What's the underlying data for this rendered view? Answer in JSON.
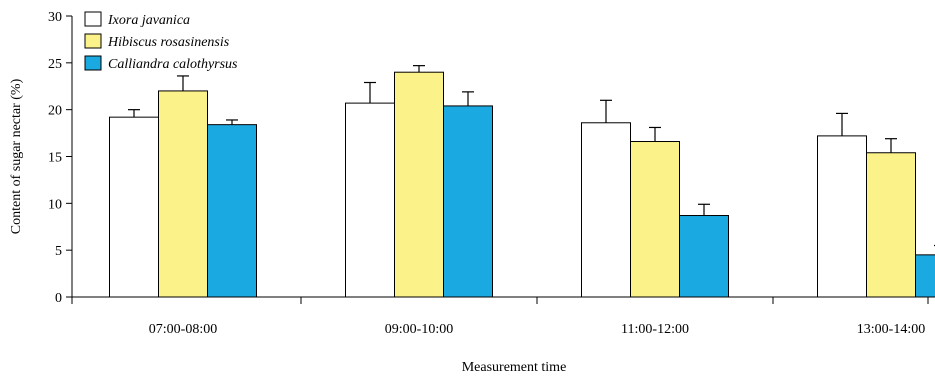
{
  "chart_data": {
    "type": "bar",
    "xlabel": "Measurement time",
    "ylabel": "Content of sugar nectar (%)",
    "ylim": [
      0,
      30
    ],
    "yticks": [
      0,
      5,
      10,
      15,
      20,
      25,
      30
    ],
    "grid": false,
    "legend_position": "top-left",
    "categories": [
      "07:00-08:00",
      "09:00-10:00",
      "11:00-12:00",
      "13:00-14:00"
    ],
    "series": [
      {
        "name": "Ixora javanica",
        "color": "#ffffff",
        "values": [
          19.2,
          20.7,
          18.6,
          17.2
        ],
        "errors": [
          0.8,
          2.2,
          2.4,
          2.4
        ]
      },
      {
        "name": "Hibiscus rosasinensis",
        "color": "#fbf28a",
        "values": [
          22.0,
          24.0,
          16.6,
          15.4
        ],
        "errors": [
          1.6,
          0.7,
          1.5,
          1.5
        ]
      },
      {
        "name": "Calliandra calothyrsus",
        "color": "#1ba9e1",
        "values": [
          18.4,
          20.4,
          8.7,
          4.5
        ],
        "errors": [
          0.5,
          1.5,
          1.2,
          1.0
        ]
      }
    ]
  }
}
